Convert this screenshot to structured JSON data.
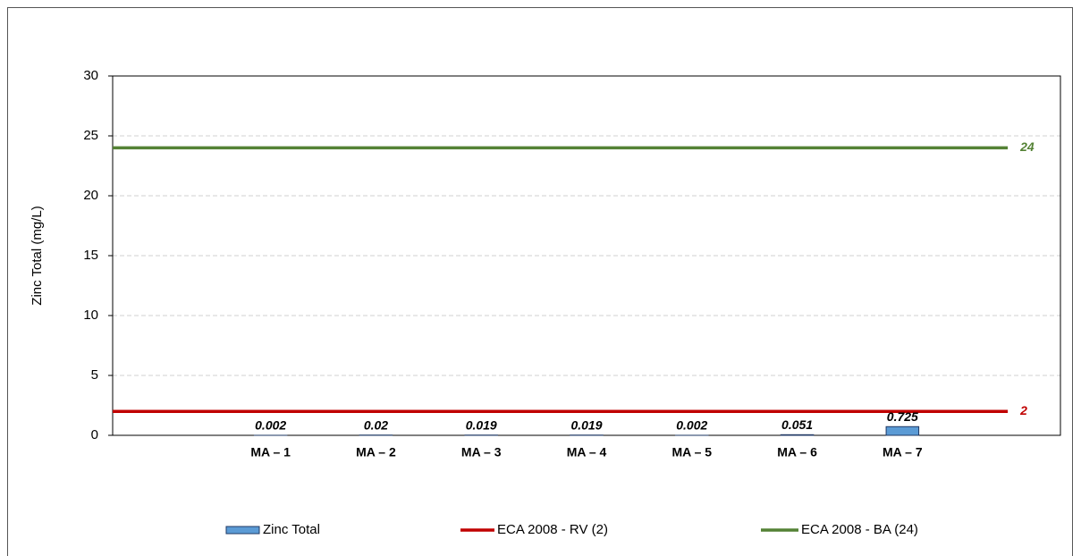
{
  "chart_data": {
    "type": "bar",
    "y_label": "Zinc Total (mg/L)",
    "categories": [
      null,
      "MA – 1",
      "MA – 2",
      "MA – 3",
      "MA – 4",
      "MA – 5",
      "MA – 6",
      "MA – 7",
      null
    ],
    "series": [
      {
        "name": "Zinc Total",
        "color": "#5b9bd5",
        "values": [
          null,
          0.002,
          0.02,
          0.019,
          0.019,
          0.002,
          0.051,
          0.725,
          null
        ]
      }
    ],
    "reference_lines": [
      {
        "name": "ECA 2008 - RV (2)",
        "color": "#c00000",
        "value": 2
      },
      {
        "name": "ECA 2008 - BA (24)",
        "color": "#548235",
        "value": 24
      }
    ],
    "ylim": [
      0,
      30
    ],
    "yticks": [
      0,
      5,
      10,
      15,
      20,
      25,
      30
    ],
    "grid": true
  }
}
